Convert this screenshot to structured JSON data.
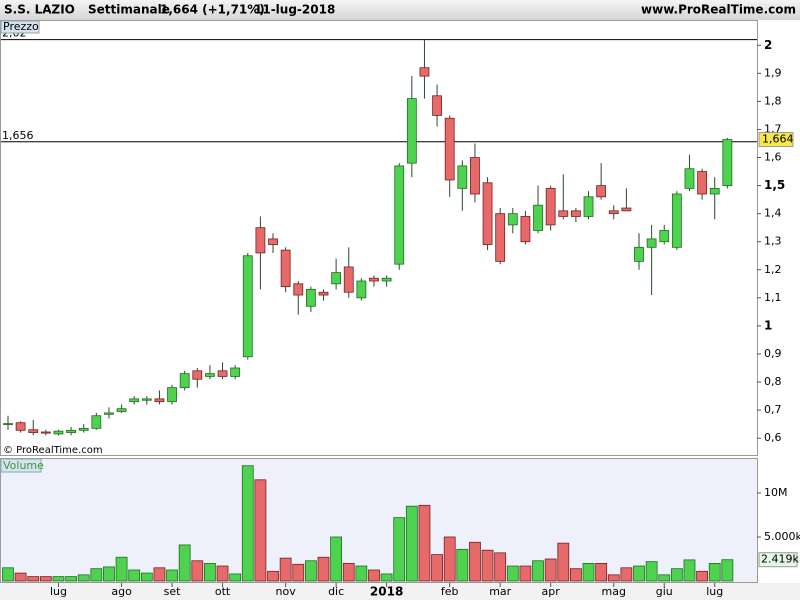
{
  "header": {
    "symbol": "S.S. LAZIO",
    "period": "Settimanale",
    "change": "1,664 (+1,71%)",
    "date": "11-lug-2018",
    "site": "www.ProRealTime.com"
  },
  "chart_data": {
    "type": "candlestick",
    "price_label": "Prezzo",
    "volume_label": "Volume",
    "copyright": "© ProRealTime.com",
    "categories": [
      null,
      null,
      null,
      null,
      "lug",
      null,
      null,
      null,
      null,
      "ago",
      null,
      null,
      null,
      "set",
      null,
      null,
      null,
      "ott",
      null,
      null,
      null,
      null,
      "nov",
      null,
      null,
      null,
      "dic",
      null,
      null,
      null,
      "2018",
      null,
      null,
      null,
      null,
      "feb",
      null,
      null,
      null,
      "mar",
      null,
      null,
      null,
      "apr",
      null,
      null,
      null,
      null,
      "mag",
      null,
      null,
      null,
      "giu",
      null,
      null,
      null,
      "lug",
      null
    ],
    "open": [
      0.651,
      0.655,
      0.63,
      0.622,
      0.615,
      0.62,
      0.628,
      0.635,
      0.685,
      0.695,
      0.73,
      0.735,
      0.74,
      0.73,
      0.78,
      0.84,
      0.82,
      0.84,
      0.82,
      0.89,
      1.35,
      1.31,
      1.27,
      1.15,
      1.07,
      1.12,
      1.15,
      1.21,
      1.1,
      1.17,
      1.16,
      1.22,
      1.58,
      1.92,
      1.82,
      1.74,
      1.49,
      1.6,
      1.51,
      1.4,
      1.36,
      1.39,
      1.34,
      1.49,
      1.41,
      1.41,
      1.39,
      1.5,
      1.41,
      1.42,
      1.23,
      1.28,
      1.3,
      1.28,
      1.49,
      1.55,
      1.47,
      1.5
    ],
    "high": [
      0.68,
      0.66,
      0.665,
      0.63,
      0.63,
      0.64,
      0.65,
      0.69,
      0.71,
      0.72,
      0.75,
      0.75,
      0.77,
      0.79,
      0.84,
      0.85,
      0.86,
      0.87,
      0.86,
      1.26,
      1.39,
      1.33,
      1.28,
      1.16,
      1.14,
      1.13,
      1.24,
      1.28,
      1.17,
      1.18,
      1.18,
      1.58,
      1.89,
      2.02,
      1.86,
      1.75,
      1.59,
      1.65,
      1.53,
      1.42,
      1.42,
      1.41,
      1.5,
      1.5,
      1.54,
      1.42,
      1.48,
      1.58,
      1.43,
      1.49,
      1.33,
      1.36,
      1.36,
      1.48,
      1.61,
      1.56,
      1.53,
      1.67
    ],
    "low": [
      0.63,
      0.62,
      0.61,
      0.61,
      0.61,
      0.61,
      0.62,
      0.63,
      0.67,
      0.69,
      0.72,
      0.72,
      0.72,
      0.72,
      0.77,
      0.78,
      0.81,
      0.81,
      0.81,
      0.88,
      1.13,
      1.26,
      1.12,
      1.04,
      1.05,
      1.09,
      1.13,
      1.1,
      1.09,
      1.14,
      1.14,
      1.2,
      1.53,
      1.81,
      1.71,
      1.46,
      1.41,
      1.44,
      1.27,
      1.22,
      1.33,
      1.29,
      1.33,
      1.34,
      1.38,
      1.37,
      1.38,
      1.45,
      1.38,
      1.41,
      1.2,
      1.11,
      1.29,
      1.27,
      1.48,
      1.45,
      1.38,
      1.49
    ],
    "close": [
      0.652,
      0.628,
      0.62,
      0.618,
      0.625,
      0.628,
      0.635,
      0.68,
      0.69,
      0.705,
      0.74,
      0.74,
      0.73,
      0.78,
      0.83,
      0.81,
      0.83,
      0.82,
      0.85,
      1.25,
      1.26,
      1.29,
      1.14,
      1.11,
      1.13,
      1.11,
      1.19,
      1.12,
      1.16,
      1.16,
      1.17,
      1.57,
      1.81,
      1.89,
      1.75,
      1.52,
      1.57,
      1.47,
      1.29,
      1.23,
      1.4,
      1.3,
      1.43,
      1.36,
      1.39,
      1.39,
      1.46,
      1.46,
      1.4,
      1.41,
      1.28,
      1.31,
      1.34,
      1.47,
      1.56,
      1.47,
      1.49,
      1.664
    ],
    "volume": [
      1500000,
      900000,
      500000,
      500000,
      500000,
      500000,
      700000,
      1400000,
      1600000,
      2700000,
      1250000,
      900000,
      1500000,
      1250000,
      4100000,
      2300000,
      2000000,
      1700000,
      800000,
      13100000,
      11500000,
      1100000,
      2600000,
      1900000,
      2300000,
      2700000,
      5000000,
      2000000,
      1700000,
      1250000,
      800000,
      7200000,
      8500000,
      8600000,
      3000000,
      5000000,
      3600000,
      4400000,
      3500000,
      3200000,
      1700000,
      1700000,
      2300000,
      2500000,
      4300000,
      1400000,
      2000000,
      2000000,
      700000,
      1500000,
      1700000,
      2200000,
      700000,
      1400000,
      2400000,
      1100000,
      2000000,
      2419000
    ],
    "up_color": "#4fd24f",
    "down_color": "#e66a6a",
    "ylim": [
      0.54,
      2.09
    ],
    "yticks": [
      {
        "value": 0.6,
        "label": "0,6"
      },
      {
        "value": 0.7,
        "label": "0,7"
      },
      {
        "value": 0.8,
        "label": "0,8"
      },
      {
        "value": 0.9,
        "label": "0,9"
      },
      1,
      {
        "value": 1.1,
        "label": "1,1"
      },
      {
        "value": 1.2,
        "label": "1,2"
      },
      {
        "value": 1.3,
        "label": "1,3"
      },
      {
        "value": 1.4,
        "label": "1,4"
      },
      {
        "value": 1.5,
        "label": "1,5"
      },
      {
        "value": 1.6,
        "label": "1,6"
      },
      {
        "value": 1.7,
        "label": "1,7"
      },
      {
        "value": 1.8,
        "label": "1,8"
      },
      {
        "value": 1.9,
        "label": "1,9"
      },
      2
    ],
    "levels": [
      {
        "value": 2.02,
        "label": "2,02"
      },
      {
        "value": 1.656,
        "label": "1,656"
      }
    ],
    "last_price": {
      "value": 1.664,
      "label": "1,664"
    },
    "volume_ylim": [
      0,
      13750000
    ],
    "volume_yticks": [
      {
        "value": 5000000,
        "label": "5.000k"
      },
      {
        "value": 10000000,
        "label": "10M"
      }
    ],
    "last_volume": {
      "value": 2419000,
      "label": "2.419k"
    }
  }
}
